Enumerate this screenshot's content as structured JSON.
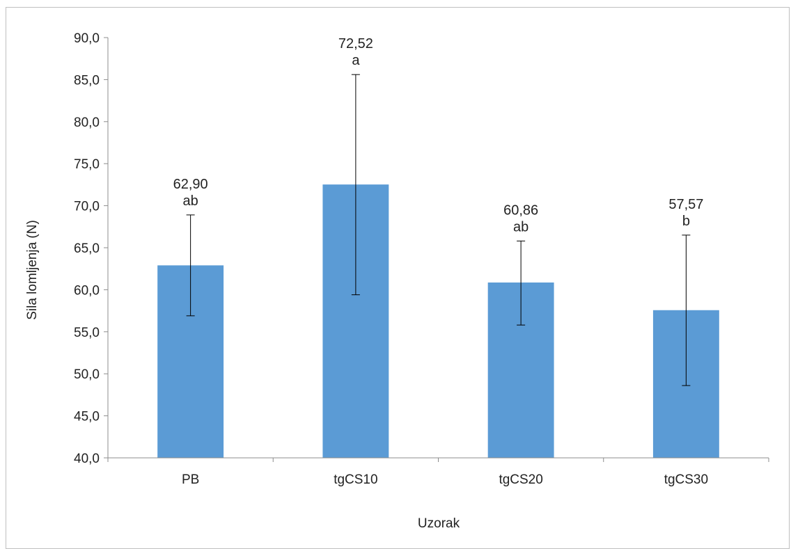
{
  "chart_data": {
    "type": "bar",
    "title": "",
    "xlabel": "Uzorak",
    "ylabel": "Sila lomljenja (N)",
    "categories": [
      "PB",
      "tgCS10",
      "tgCS20",
      "tgCS30"
    ],
    "values": [
      62.9,
      72.52,
      60.86,
      57.57
    ],
    "value_labels": [
      "62,90",
      "72,52",
      "60,86",
      "57,57"
    ],
    "significance_letters": [
      "ab",
      "a",
      "ab",
      "b"
    ],
    "error_low": [
      56.9,
      59.4,
      55.8,
      48.6
    ],
    "error_high": [
      68.9,
      85.6,
      65.8,
      66.5
    ],
    "ylim": [
      40,
      90
    ],
    "yticks": [
      40,
      45,
      50,
      55,
      60,
      65,
      70,
      75,
      80,
      85,
      90
    ],
    "ytick_labels": [
      "40,0",
      "45,0",
      "50,0",
      "55,0",
      "60,0",
      "65,0",
      "70,0",
      "75,0",
      "80,0",
      "85,0",
      "90,0"
    ],
    "grid": false,
    "legend": "none",
    "bar_color": "#5b9bd5",
    "axis_color": "#8c8c8c",
    "error_bar_color": "#000000"
  }
}
